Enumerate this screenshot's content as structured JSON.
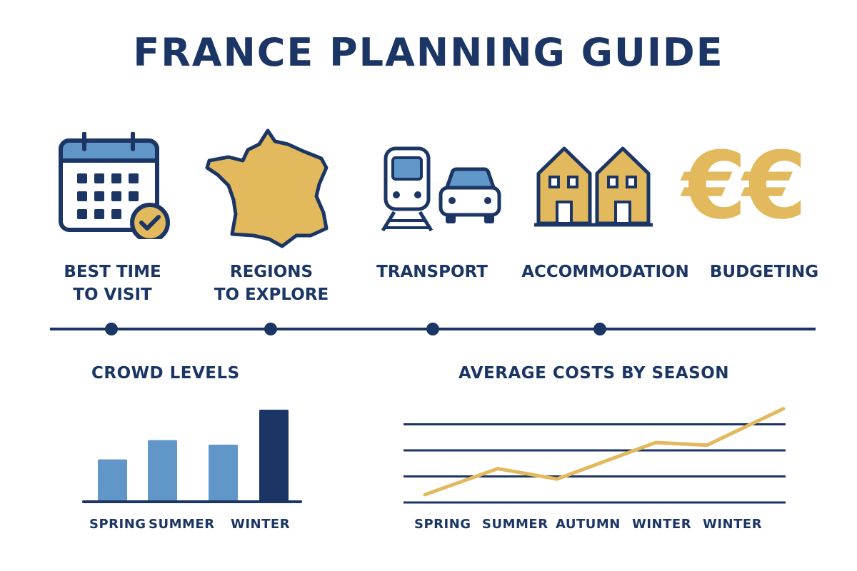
{
  "title": "FRANCE PLANNING GUIDE",
  "colors": {
    "navy": "#1b3564",
    "blue": "#6096c8",
    "gold": "#e3b95e"
  },
  "features": [
    {
      "icon": "calendar-check-icon",
      "line1": "BEST TIME",
      "line2": "TO VISIT"
    },
    {
      "icon": "france-map-icon",
      "line1": "REGIONS",
      "line2": "TO EXPLORE"
    },
    {
      "icon": "train-car-icon",
      "line1": "TRANSPORT",
      "line2": ""
    },
    {
      "icon": "houses-icon",
      "line1": "ACCOMMODATION",
      "line2": ""
    },
    {
      "icon": "euro-icon",
      "line1": "BUDGETING",
      "line2": ""
    }
  ],
  "euro_symbols": "€€",
  "chart_data": [
    {
      "type": "bar",
      "title": "CROWD LEVELS",
      "categories": [
        "SPRING",
        "SUMMER",
        "",
        "WINTER"
      ],
      "tick_labels": [
        "SPRING",
        "SUMMER",
        "WINTER"
      ],
      "values": [
        46,
        67,
        62,
        100
      ],
      "colors": [
        "#6096c8",
        "#6096c8",
        "#6096c8",
        "#1b3564"
      ],
      "ylim": [
        0,
        100
      ],
      "grid": false
    },
    {
      "type": "line",
      "title": "AVERAGE COSTS BY SEASON",
      "tick_labels": [
        "SPRING",
        "SUMMER",
        "AUTUMN",
        "WINTER",
        "WINTER"
      ],
      "values": [
        0.3,
        1.3,
        0.9,
        2.3,
        2.2,
        3.6
      ],
      "ylim": [
        0,
        3.8
      ],
      "grid": true,
      "gridlines": [
        0,
        1,
        2,
        3
      ],
      "color": "#e3b95e"
    }
  ]
}
